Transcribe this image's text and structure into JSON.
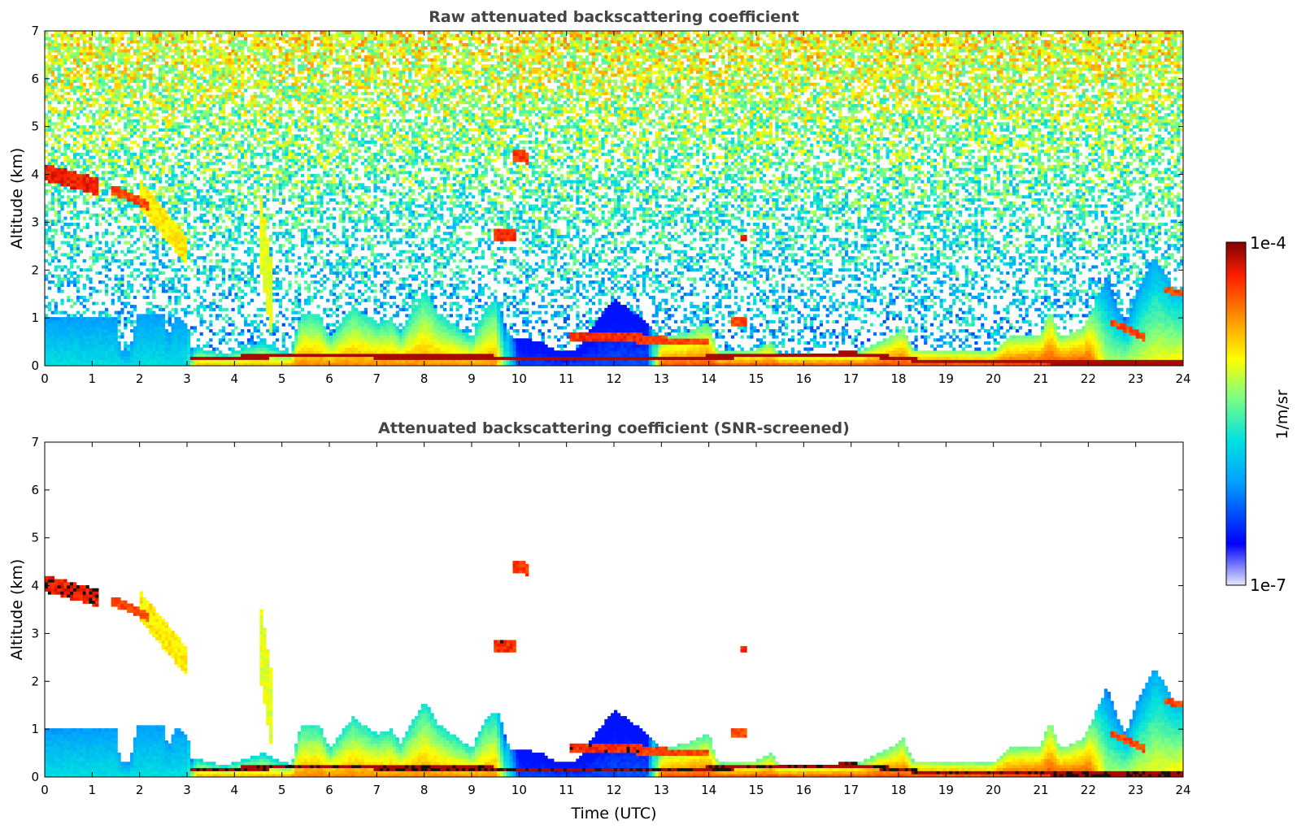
{
  "chart_data": [
    {
      "type": "heatmap",
      "title": "Raw attenuated backscattering coefficient",
      "xlabel": "",
      "ylabel": "Altitude (km)",
      "xlim": [
        0,
        24
      ],
      "ylim": [
        0,
        7
      ],
      "xticks": [
        "0",
        "1",
        "2",
        "3",
        "4",
        "5",
        "6",
        "7",
        "8",
        "9",
        "10",
        "11",
        "12",
        "13",
        "14",
        "15",
        "16",
        "17",
        "18",
        "19",
        "20",
        "21",
        "22",
        "23",
        "24"
      ],
      "yticks": [
        "0",
        "1",
        "2",
        "3",
        "4",
        "5",
        "6",
        "7"
      ],
      "features": [
        {
          "kind": "boundary_layer",
          "time_range": [
            0,
            3
          ],
          "top_km": 1.0,
          "level": "0.45"
        },
        {
          "kind": "elevated_layer",
          "time_range": [
            0,
            1.1
          ],
          "altitude_km": 3.9,
          "level": "0.95"
        },
        {
          "kind": "descending_layer",
          "time_range": [
            1.4,
            3.0
          ],
          "altitude_km": [
            3.5,
            2.3
          ],
          "level": "0.75"
        },
        {
          "kind": "boundary_layer",
          "time_range": [
            5.3,
            9.5
          ],
          "top_km": 1.6,
          "level": "0.8"
        },
        {
          "kind": "cloud",
          "time": 9.7,
          "altitude_km": 2.75,
          "level": "0.9"
        },
        {
          "kind": "cloud",
          "time": 10.0,
          "altitude_km": 4.4,
          "level": "0.9"
        },
        {
          "kind": "boundary_layer",
          "time_range": [
            13,
            22
          ],
          "top_km": 0.4,
          "level": "0.9"
        },
        {
          "kind": "boundary_layer",
          "time_range": [
            22,
            24
          ],
          "top_km": 2.0,
          "level": "0.7"
        }
      ]
    },
    {
      "type": "heatmap",
      "title": "Attenuated backscattering coefficient (SNR-screened)",
      "xlabel": "Time (UTC)",
      "ylabel": "Altitude (km)",
      "xlim": [
        0,
        24
      ],
      "ylim": [
        0,
        7
      ],
      "xticks": [
        "0",
        "1",
        "2",
        "3",
        "4",
        "5",
        "6",
        "7",
        "8",
        "9",
        "10",
        "11",
        "12",
        "13",
        "14",
        "15",
        "16",
        "17",
        "18",
        "19",
        "20",
        "21",
        "22",
        "23",
        "24"
      ],
      "yticks": [
        "0",
        "1",
        "2",
        "3",
        "4",
        "5",
        "6",
        "7"
      ],
      "screening": "SNR-screened"
    }
  ],
  "colorbar": {
    "label": "1/m/sr",
    "max_label": "1e-4",
    "min_label": "1e-7",
    "colors": [
      "#e8e8f8",
      "#0000ff",
      "#00a0ff",
      "#00e0e0",
      "#80ff80",
      "#ffff00",
      "#ff9000",
      "#ff2000",
      "#800000"
    ]
  }
}
